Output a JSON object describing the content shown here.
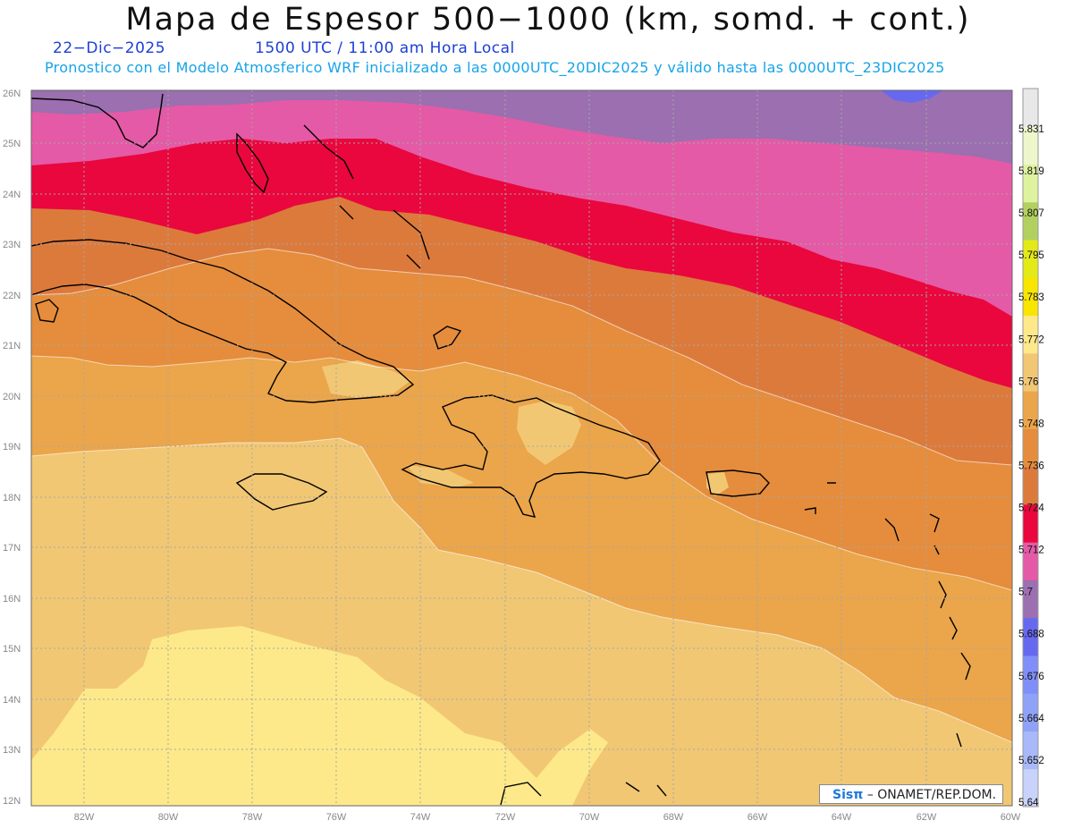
{
  "header": {
    "title": "Mapa de Espesor 500−1000 (km, somd. + cont.)",
    "date": "22−Dic−2025",
    "time": "1500 UTC / 11:00 am Hora Local",
    "forecast_note": "Pronostico con el Modelo Atmosferico WRF inicializado a las 0000UTC_20DIC2025 y válido hasta las  0000UTC_23DIC2025"
  },
  "axes": {
    "lon_labels": [
      "82W",
      "80W",
      "78W",
      "76W",
      "74W",
      "72W",
      "70W",
      "68W",
      "66W",
      "64W",
      "62W",
      "60W"
    ],
    "lat_labels": [
      "26N",
      "25N",
      "24N",
      "23N",
      "22N",
      "21N",
      "20N",
      "19N",
      "18N",
      "17N",
      "16N",
      "15N",
      "14N",
      "13N",
      "12N"
    ]
  },
  "legend": {
    "labels": [
      "5.831",
      "5.819",
      "5.807",
      "5.795",
      "5.783",
      "5.772",
      "5.76",
      "5.748",
      "5.736",
      "5.724",
      "5.712",
      "5.7",
      "5.688",
      "5.676",
      "5.664",
      "5.652",
      "5.64"
    ],
    "colors": [
      "#c9d2fa",
      "#a8b8f8",
      "#8ea2f7",
      "#7f8ef8",
      "#6768f0",
      "#9b6fb0",
      "#e45aa6",
      "#e9073e",
      "#dc7a3c",
      "#e58d3c",
      "#eba54a",
      "#f1c774",
      "#fde98a",
      "#f8e500",
      "#e3ea18",
      "#b2d060",
      "#dff2a0",
      "#eef6cc",
      "#e8e8e8"
    ]
  },
  "footer": {
    "brand": "Sisπ",
    "credit": "– ONAMET/REP.DOM."
  }
}
